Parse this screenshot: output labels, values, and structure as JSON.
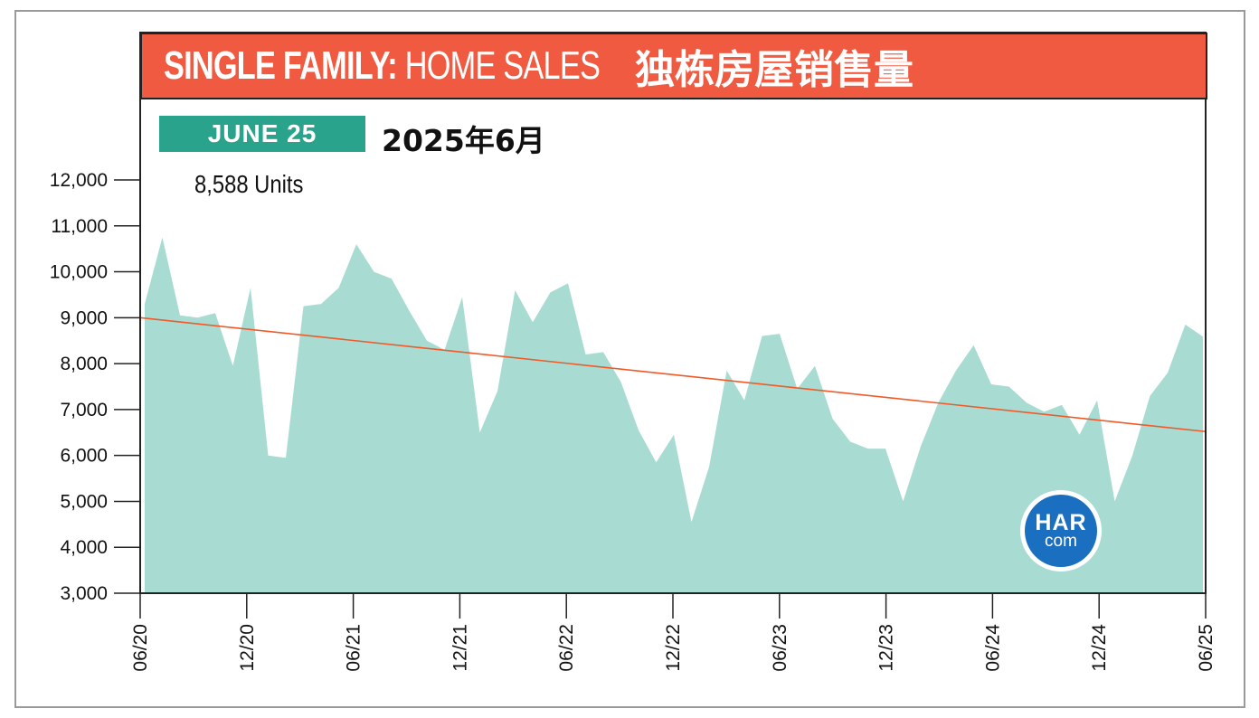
{
  "header": {
    "title_bold": "SINGLE FAMILY:",
    "title_light": "HOME SALES",
    "title_cn": "独栋房屋销售量",
    "badge": "JUNE 25",
    "date_cn": "2025年6月",
    "units_label": "8,588 Units"
  },
  "logo": {
    "top": "HAR",
    "bottom": "com"
  },
  "colors": {
    "banner": "#ef5a40",
    "badge": "#2aa38d",
    "area": "#a8dcd3",
    "trend": "#f05a28",
    "logo": "#1a6fc0"
  },
  "chart_data": {
    "type": "area",
    "title": "SINGLE FAMILY: HOME SALES 独栋房屋销售量",
    "ylim": [
      3000,
      12000
    ],
    "yticks": [
      "3,000",
      "4,000",
      "5,000",
      "6,000",
      "7,000",
      "8,000",
      "9,000",
      "10,000",
      "11,000",
      "12,000"
    ],
    "xticks": [
      "06/20",
      "12/20",
      "06/21",
      "12/21",
      "06/22",
      "12/22",
      "06/23",
      "12/23",
      "06/24",
      "12/24",
      "06/25"
    ],
    "x": [
      "06/20",
      "07/20",
      "08/20",
      "09/20",
      "10/20",
      "11/20",
      "12/20",
      "01/21",
      "02/21",
      "03/21",
      "04/21",
      "05/21",
      "06/21",
      "07/21",
      "08/21",
      "09/21",
      "10/21",
      "11/21",
      "12/21",
      "01/22",
      "02/22",
      "03/22",
      "04/22",
      "05/22",
      "06/22",
      "07/22",
      "08/22",
      "09/22",
      "10/22",
      "11/22",
      "12/22",
      "01/23",
      "02/23",
      "03/23",
      "04/23",
      "05/23",
      "06/23",
      "07/23",
      "08/23",
      "09/23",
      "10/23",
      "11/23",
      "12/23",
      "01/24",
      "02/24",
      "03/24",
      "04/24",
      "05/24",
      "06/24",
      "07/24",
      "08/24",
      "09/24",
      "10/24",
      "11/24",
      "12/24",
      "01/25",
      "02/25",
      "03/25",
      "04/25",
      "05/25",
      "06/25"
    ],
    "values": [
      9300,
      10750,
      9050,
      9000,
      9100,
      7950,
      9650,
      6000,
      5950,
      9250,
      9300,
      9650,
      10600,
      10000,
      9850,
      9150,
      8500,
      8300,
      9450,
      6500,
      7400,
      9600,
      8900,
      9550,
      9750,
      8200,
      8250,
      7600,
      6550,
      5850,
      6450,
      4550,
      5750,
      7850,
      7200,
      8600,
      8650,
      7450,
      7950,
      6800,
      6300,
      6150,
      6150,
      5000,
      6200,
      7150,
      7850,
      8400,
      7550,
      7500,
      7150,
      6950,
      7100,
      6450,
      7200,
      5000,
      6000,
      7300,
      7800,
      8850,
      8588
    ],
    "trend": {
      "start": 9000,
      "end": 6520
    }
  }
}
